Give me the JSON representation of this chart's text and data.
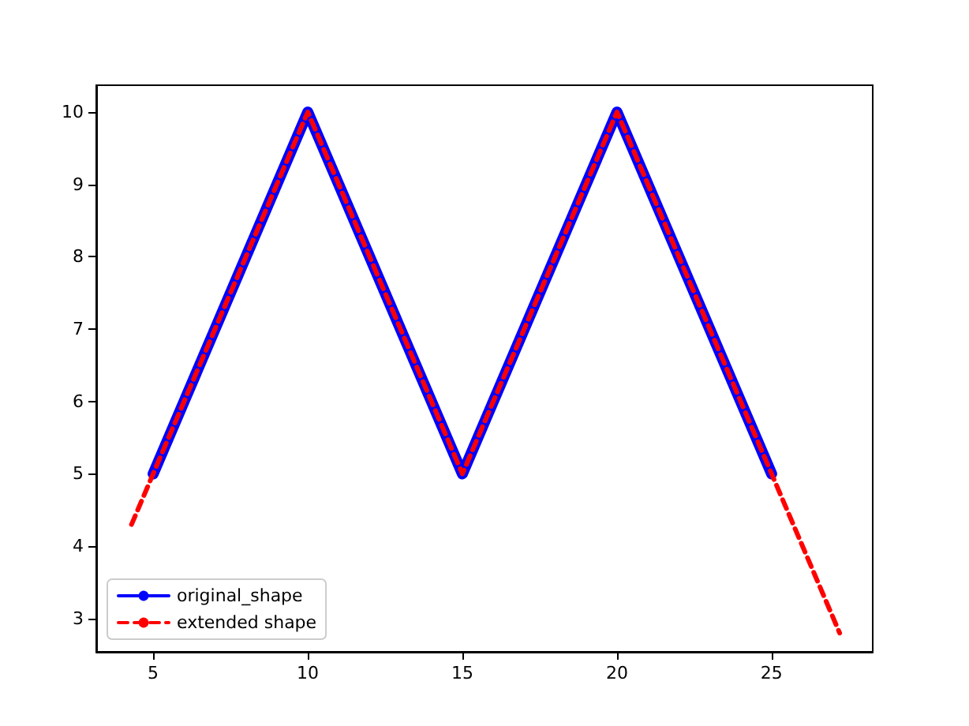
{
  "chart_data": {
    "type": "line",
    "xlim": [
      3.16,
      28.27
    ],
    "xticks": [
      5,
      10,
      15,
      20,
      25
    ],
    "ylim": [
      2.54,
      10.37
    ],
    "yticks": [
      3,
      4,
      5,
      6,
      7,
      8,
      9,
      10
    ],
    "grid": false,
    "legend": "bottom left",
    "marker": "none",
    "series": [
      {
        "name": "original_shape",
        "color": "#0000ff",
        "line_style": "solid",
        "x": [
          5,
          10,
          15,
          20,
          25
        ],
        "values": [
          5,
          10,
          5,
          10,
          5
        ]
      },
      {
        "name": "extended shape",
        "color": "#ff0000",
        "line_style": "dashed",
        "x": [
          4.3,
          5,
          10,
          15,
          20,
          25,
          27.2
        ],
        "values": [
          4.3,
          5,
          10,
          5,
          10,
          5,
          2.8
        ]
      }
    ]
  }
}
